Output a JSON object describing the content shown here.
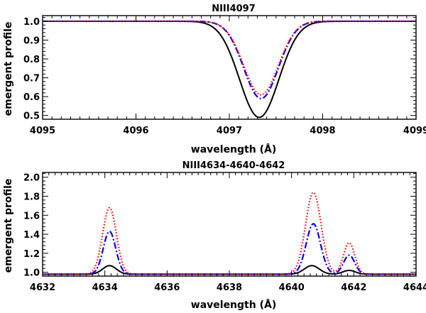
{
  "chart_data": [
    {
      "type": "line",
      "title": "NIII4097",
      "xlabel": "wavelength (Å)",
      "ylabel": "emergent profile",
      "xlim": [
        4095,
        4099
      ],
      "ylim": [
        0.48,
        1.03
      ],
      "xticks": [
        4095,
        4096,
        4097,
        4098,
        4099
      ],
      "xtick_labels": [
        "4095",
        "4096",
        "4097",
        "4098",
        "4099"
      ],
      "yticks": [
        0.5,
        0.6,
        0.7,
        0.8,
        0.9,
        1.0
      ],
      "ytick_labels": [
        "0.5",
        "0.6",
        "0.7",
        "0.8",
        "0.9",
        "1.0"
      ],
      "series": [
        {
          "name": "solid",
          "color": "#000000",
          "style": "solid",
          "continuum": 1.0,
          "lines": [
            {
              "center": 4097.32,
              "depth": 0.51,
              "sigma": 0.21
            }
          ]
        },
        {
          "name": "dashed",
          "color": "#0000ff",
          "style": "dashdot",
          "continuum": 1.0,
          "lines": [
            {
              "center": 4097.34,
              "depth": 0.41,
              "sigma": 0.185
            }
          ]
        },
        {
          "name": "dotted",
          "color": "#ff0000",
          "style": "dotted",
          "continuum": 1.0,
          "lines": [
            {
              "center": 4097.34,
              "depth": 0.39,
              "sigma": 0.185
            }
          ]
        }
      ]
    },
    {
      "type": "line",
      "title": "NIII4634-4640-4642",
      "xlabel": "wavelength (Å)",
      "ylabel": "emergent profile",
      "xlim": [
        4632,
        4644
      ],
      "ylim": [
        0.96,
        2.05
      ],
      "xticks": [
        4632,
        4634,
        4636,
        4638,
        4640,
        4642,
        4644
      ],
      "xtick_labels": [
        "4632",
        "4634",
        "4636",
        "4638",
        "4640",
        "4642",
        "4644"
      ],
      "yticks": [
        1.0,
        1.2,
        1.4,
        1.6,
        1.8,
        2.0
      ],
      "ytick_labels": [
        "1.0",
        "1.2",
        "1.4",
        "1.6",
        "1.8",
        "2.0"
      ],
      "series": [
        {
          "name": "solid",
          "color": "#000000",
          "style": "solid",
          "continuum": 0.98,
          "lines": [
            {
              "center": 4634.15,
              "depth": -0.09,
              "sigma": 0.22
            },
            {
              "center": 4640.65,
              "depth": -0.09,
              "sigma": 0.24
            },
            {
              "center": 4641.85,
              "depth": -0.04,
              "sigma": 0.2
            }
          ]
        },
        {
          "name": "dashed",
          "color": "#0000ff",
          "style": "dashdot",
          "continuum": 0.98,
          "lines": [
            {
              "center": 4634.15,
              "depth": -0.45,
              "sigma": 0.2
            },
            {
              "center": 4640.7,
              "depth": -0.53,
              "sigma": 0.23
            },
            {
              "center": 4641.85,
              "depth": -0.2,
              "sigma": 0.18
            }
          ]
        },
        {
          "name": "dotted",
          "color": "#ff0000",
          "style": "dotted",
          "continuum": 0.98,
          "lines": [
            {
              "center": 4634.15,
              "depth": -0.7,
              "sigma": 0.22
            },
            {
              "center": 4640.7,
              "depth": -0.86,
              "sigma": 0.25
            },
            {
              "center": 4641.85,
              "depth": -0.33,
              "sigma": 0.18
            }
          ]
        }
      ]
    }
  ]
}
